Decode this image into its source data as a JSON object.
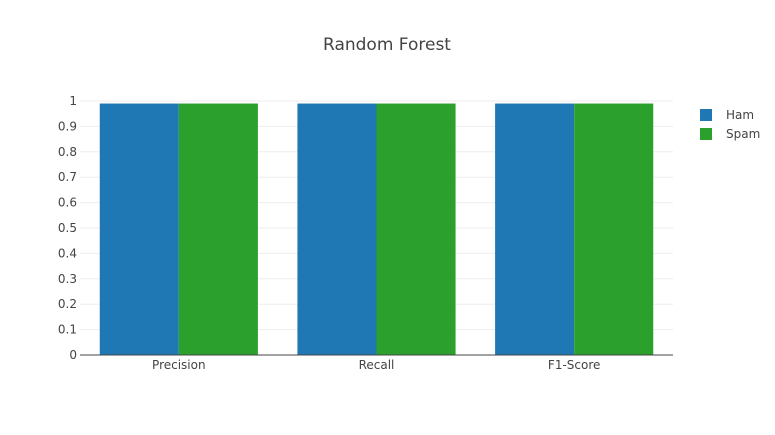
{
  "chart_data": {
    "type": "bar",
    "title": "Random Forest",
    "xlabel": "",
    "ylabel": "",
    "categories": [
      "Precision",
      "Recall",
      "F1-Score"
    ],
    "series": [
      {
        "name": "Ham",
        "color": "#1f77b4",
        "values": [
          0.99,
          0.99,
          0.99
        ]
      },
      {
        "name": "Spam",
        "color": "#2ca02c",
        "values": [
          0.99,
          0.99,
          0.99
        ]
      }
    ],
    "ylim": [
      0,
      1
    ],
    "yticks": [
      "0",
      "0.1",
      "0.2",
      "0.3",
      "0.4",
      "0.5",
      "0.6",
      "0.7",
      "0.8",
      "0.9",
      "1"
    ],
    "grid": true,
    "legend_position": "right"
  }
}
